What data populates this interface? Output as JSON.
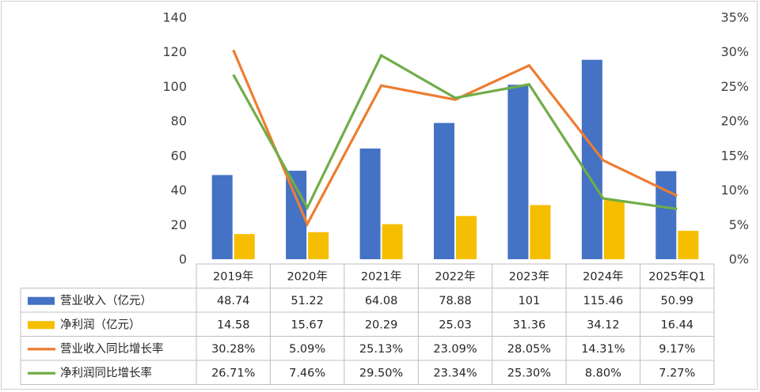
{
  "chart_data": {
    "type": "bar",
    "categories": [
      "2019年",
      "2020年",
      "2021年",
      "2022年",
      "2023年",
      "2024年",
      "2025年Q1"
    ],
    "series": [
      {
        "name": "营业收入（亿元）",
        "kind": "bar",
        "axis": "left",
        "color": "#4472C4",
        "values": [
          48.74,
          51.22,
          64.08,
          78.88,
          101,
          115.46,
          50.99
        ],
        "labels": [
          "48.74",
          "51.22",
          "64.08",
          "78.88",
          "101",
          "115.46",
          "50.99"
        ]
      },
      {
        "name": "净利润（亿元）",
        "kind": "bar",
        "axis": "left",
        "color": "#F5BE00",
        "values": [
          14.58,
          15.67,
          20.29,
          25.03,
          31.36,
          34.12,
          16.44
        ],
        "labels": [
          "14.58",
          "15.67",
          "20.29",
          "25.03",
          "31.36",
          "34.12",
          "16.44"
        ]
      },
      {
        "name": "营业收入同比增长率",
        "kind": "line",
        "axis": "right",
        "color": "#ED7D31",
        "values": [
          30.28,
          5.09,
          25.13,
          23.09,
          28.05,
          14.31,
          9.17
        ],
        "labels": [
          "30.28%",
          "5.09%",
          "25.13%",
          "23.09%",
          "28.05%",
          "14.31%",
          "9.17%"
        ]
      },
      {
        "name": "净利润同比增长率",
        "kind": "line",
        "axis": "right",
        "color": "#70AD47",
        "values": [
          26.71,
          7.46,
          29.5,
          23.34,
          25.3,
          8.8,
          7.27
        ],
        "labels": [
          "26.71%",
          "7.46%",
          "29.50%",
          "23.34%",
          "25.30%",
          "8.80%",
          "7.27%"
        ]
      }
    ],
    "y_left": {
      "ylim": [
        0,
        140
      ],
      "ticks": [
        "0",
        "20",
        "40",
        "60",
        "80",
        "100",
        "120",
        "140"
      ]
    },
    "y_right": {
      "ylim": [
        0,
        35
      ],
      "ticks": [
        "0%",
        "5%",
        "10%",
        "15%",
        "20%",
        "25%",
        "30%",
        "35%"
      ]
    },
    "grid": false,
    "legend": "data-table"
  }
}
